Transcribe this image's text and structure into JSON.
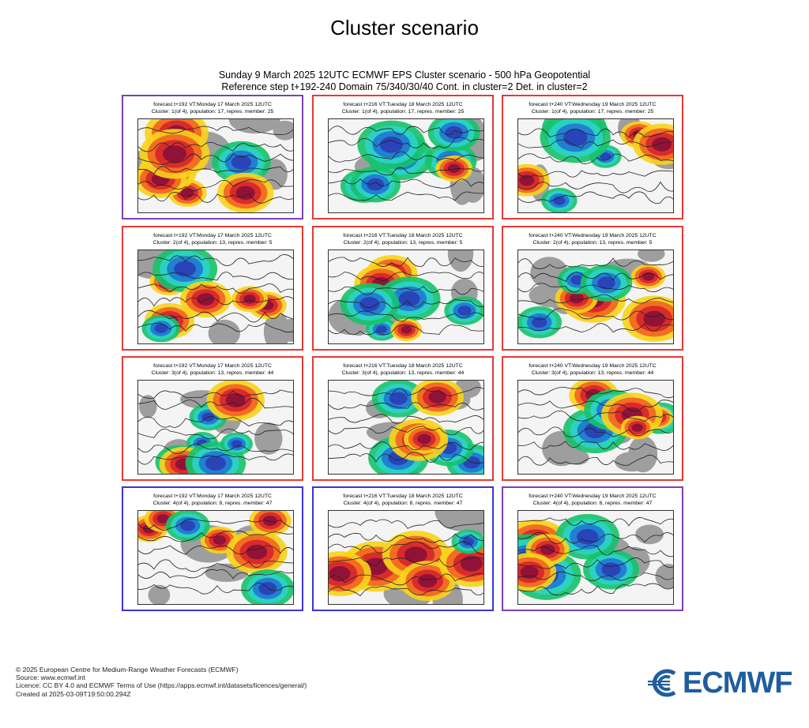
{
  "page": {
    "title": "Cluster scenario",
    "header_line1": "Sunday 9 March 2025 12UTC ECMWF EPS Cluster scenario - 500 hPa Geopotential",
    "header_line2": "Reference step t+192-240 Domain 75/340/30/40 Cont. in cluster=2 Det. in cluster=2"
  },
  "colors": {
    "red_border": "#e53935",
    "purple_border": "#7e3fb5",
    "blue_border": "#3a33d6",
    "logo_blue": "#1f5da0"
  },
  "panels": [
    {
      "row": 1,
      "col": 1,
      "border": "purple",
      "line1": "forecast t+192 VT:Monday 17 March 2025 12UTC",
      "line2": "Cluster: 1(of 4), population: 17, repres. member: 25"
    },
    {
      "row": 1,
      "col": 2,
      "border": "red",
      "line1": "forecast t+216 VT:Tuesday 18 March 2025 12UTC",
      "line2": "Cluster: 1(of 4), population: 17, repres. member: 25"
    },
    {
      "row": 1,
      "col": 3,
      "border": "red",
      "line1": "forecast t+240 VT:Wednesday 19 March 2025 12UTC",
      "line2": "Cluster: 1(of 4), population: 17, repres. member: 25"
    },
    {
      "row": 2,
      "col": 1,
      "border": "red",
      "line1": "forecast t+192 VT:Monday 17 March 2025 12UTC",
      "line2": "Cluster: 2(of 4), population: 13, repres. member: 5"
    },
    {
      "row": 2,
      "col": 2,
      "border": "red",
      "line1": "forecast t+216 VT:Tuesday 18 March 2025 12UTC",
      "line2": "Cluster: 2(of 4), population: 13, repres. member: 5"
    },
    {
      "row": 2,
      "col": 3,
      "border": "red",
      "line1": "forecast t+240 VT:Wednesday 19 March 2025 12UTC",
      "line2": "Cluster: 2(of 4), population: 13, repres. member: 5"
    },
    {
      "row": 3,
      "col": 1,
      "border": "red",
      "line1": "forecast t+192 VT:Monday 17 March 2025 12UTC",
      "line2": "Cluster: 3(of 4), population: 13, repres. member: 44"
    },
    {
      "row": 3,
      "col": 2,
      "border": "red",
      "line1": "forecast t+216 VT:Tuesday 18 March 2025 12UTC",
      "line2": "Cluster: 3(of 4), population: 13, repres. member: 44"
    },
    {
      "row": 3,
      "col": 3,
      "border": "red",
      "line1": "forecast t+240 VT:Wednesday 19 March 2025 12UTC",
      "line2": "Cluster: 3(of 4), population: 13, repres. member: 44"
    },
    {
      "row": 4,
      "col": 1,
      "border": "blue",
      "line1": "forecast t+192 VT:Monday 17 March 2025 12UTC",
      "line2": "Cluster: 4(of 4), population: 8, repres. member: 47"
    },
    {
      "row": 4,
      "col": 2,
      "border": "blue",
      "line1": "forecast t+216 VT:Tuesday 18 March 2025 12UTC",
      "line2": "Cluster: 4(of 4), population: 8, repres. member: 47"
    },
    {
      "row": 4,
      "col": 3,
      "border": "purple",
      "line1": "forecast t+240 VT:Wednesday 19 March 2025 12UTC",
      "line2": "Cluster: 4(of 4), population: 8, repres. member: 47"
    }
  ],
  "footer": {
    "line1": "© 2025 European Centre for Medium-Range Weather Forecasts (ECMWF)",
    "line2": "Source: www.ecmwf.int",
    "line3": "Licence: CC BY 4.0 and ECMWF Terms of Use (https://apps.ecmwf.int/datasets/licences/general/)",
    "line4": "Created at 2025-03-09T19:50:00.294Z"
  },
  "logo": {
    "text": "ECMWF"
  }
}
